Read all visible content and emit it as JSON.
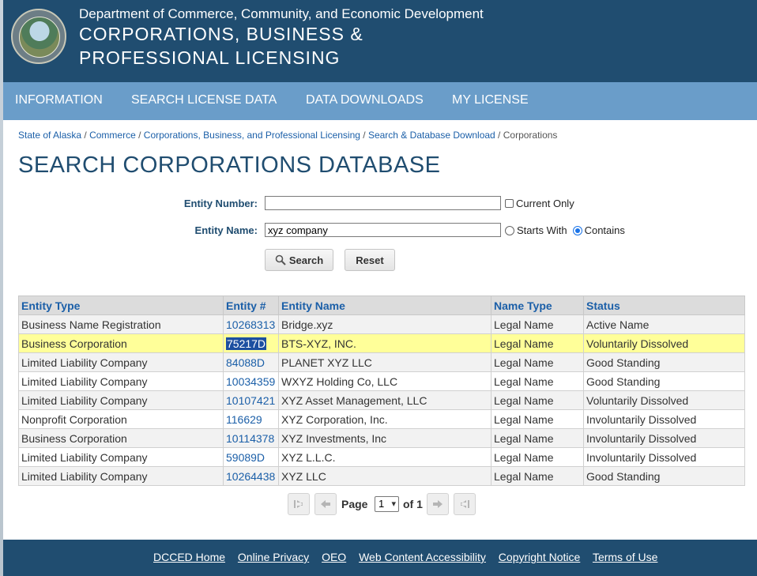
{
  "header": {
    "department": "Department of Commerce, Community, and Economic Development",
    "title_line1": "CORPORATIONS, BUSINESS &",
    "title_line2": "PROFESSIONAL LICENSING",
    "seal_icon": "state-seal-icon"
  },
  "nav": {
    "items": [
      "INFORMATION",
      "SEARCH LICENSE DATA",
      "DATA DOWNLOADS",
      "MY LICENSE"
    ]
  },
  "breadcrumb": {
    "items": [
      "State of Alaska",
      "Commerce",
      "Corporations, Business, and Professional Licensing",
      "Search & Database Download"
    ],
    "current": "Corporations",
    "separator": " / "
  },
  "page": {
    "title": "SEARCH CORPORATIONS DATABASE"
  },
  "form": {
    "entity_number_label": "Entity Number:",
    "entity_number_value": "",
    "current_only_label": "Current Only",
    "current_only_checked": false,
    "entity_name_label": "Entity Name:",
    "entity_name_value": "xyz company",
    "starts_with_label": "Starts With",
    "contains_label": "Contains",
    "match_mode": "Contains",
    "search_label": "Search",
    "reset_label": "Reset"
  },
  "results": {
    "columns": [
      "Entity Type",
      "Entity #",
      "Entity Name",
      "Name Type",
      "Status"
    ],
    "rows": [
      {
        "type": "Business Name Registration",
        "number": "10268313",
        "name": "Bridge.xyz",
        "name_type": "Legal Name",
        "status": "Active Name"
      },
      {
        "type": "Business Corporation",
        "number": "75217D",
        "name": "BTS-XYZ, INC.",
        "name_type": "Legal Name",
        "status": "Voluntarily Dissolved"
      },
      {
        "type": "Limited Liability Company",
        "number": "84088D",
        "name": "PLANET XYZ LLC",
        "name_type": "Legal Name",
        "status": "Good Standing"
      },
      {
        "type": "Limited Liability Company",
        "number": "10034359",
        "name": "WXYZ Holding Co, LLC",
        "name_type": "Legal Name",
        "status": "Good Standing"
      },
      {
        "type": "Limited Liability Company",
        "number": "10107421",
        "name": "XYZ Asset Management, LLC",
        "name_type": "Legal Name",
        "status": "Voluntarily Dissolved"
      },
      {
        "type": "Nonprofit Corporation",
        "number": "116629",
        "name": "XYZ Corporation, Inc.",
        "name_type": "Legal Name",
        "status": "Involuntarily Dissolved"
      },
      {
        "type": "Business Corporation",
        "number": "10114378",
        "name": "XYZ Investments, Inc",
        "name_type": "Legal Name",
        "status": "Involuntarily Dissolved"
      },
      {
        "type": "Limited Liability Company",
        "number": "59089D",
        "name": "XYZ L.L.C.",
        "name_type": "Legal Name",
        "status": "Involuntarily Dissolved"
      },
      {
        "type": "Limited Liability Company",
        "number": "10264438",
        "name": "XYZ LLC",
        "name_type": "Legal Name",
        "status": "Good Standing"
      }
    ],
    "highlighted_row": 1
  },
  "pager": {
    "page_label": "Page",
    "current_page": "1",
    "of_label": "of 1"
  },
  "footer": {
    "links": [
      "DCCED Home",
      "Online Privacy",
      "OEO",
      "Web Content Accessibility",
      "Copyright Notice",
      "Terms of Use"
    ]
  },
  "colors": {
    "header_bg": "#204d70",
    "nav_bg": "#6a9dc9",
    "link": "#1b5fa8",
    "highlight_row": "#ffff99"
  }
}
